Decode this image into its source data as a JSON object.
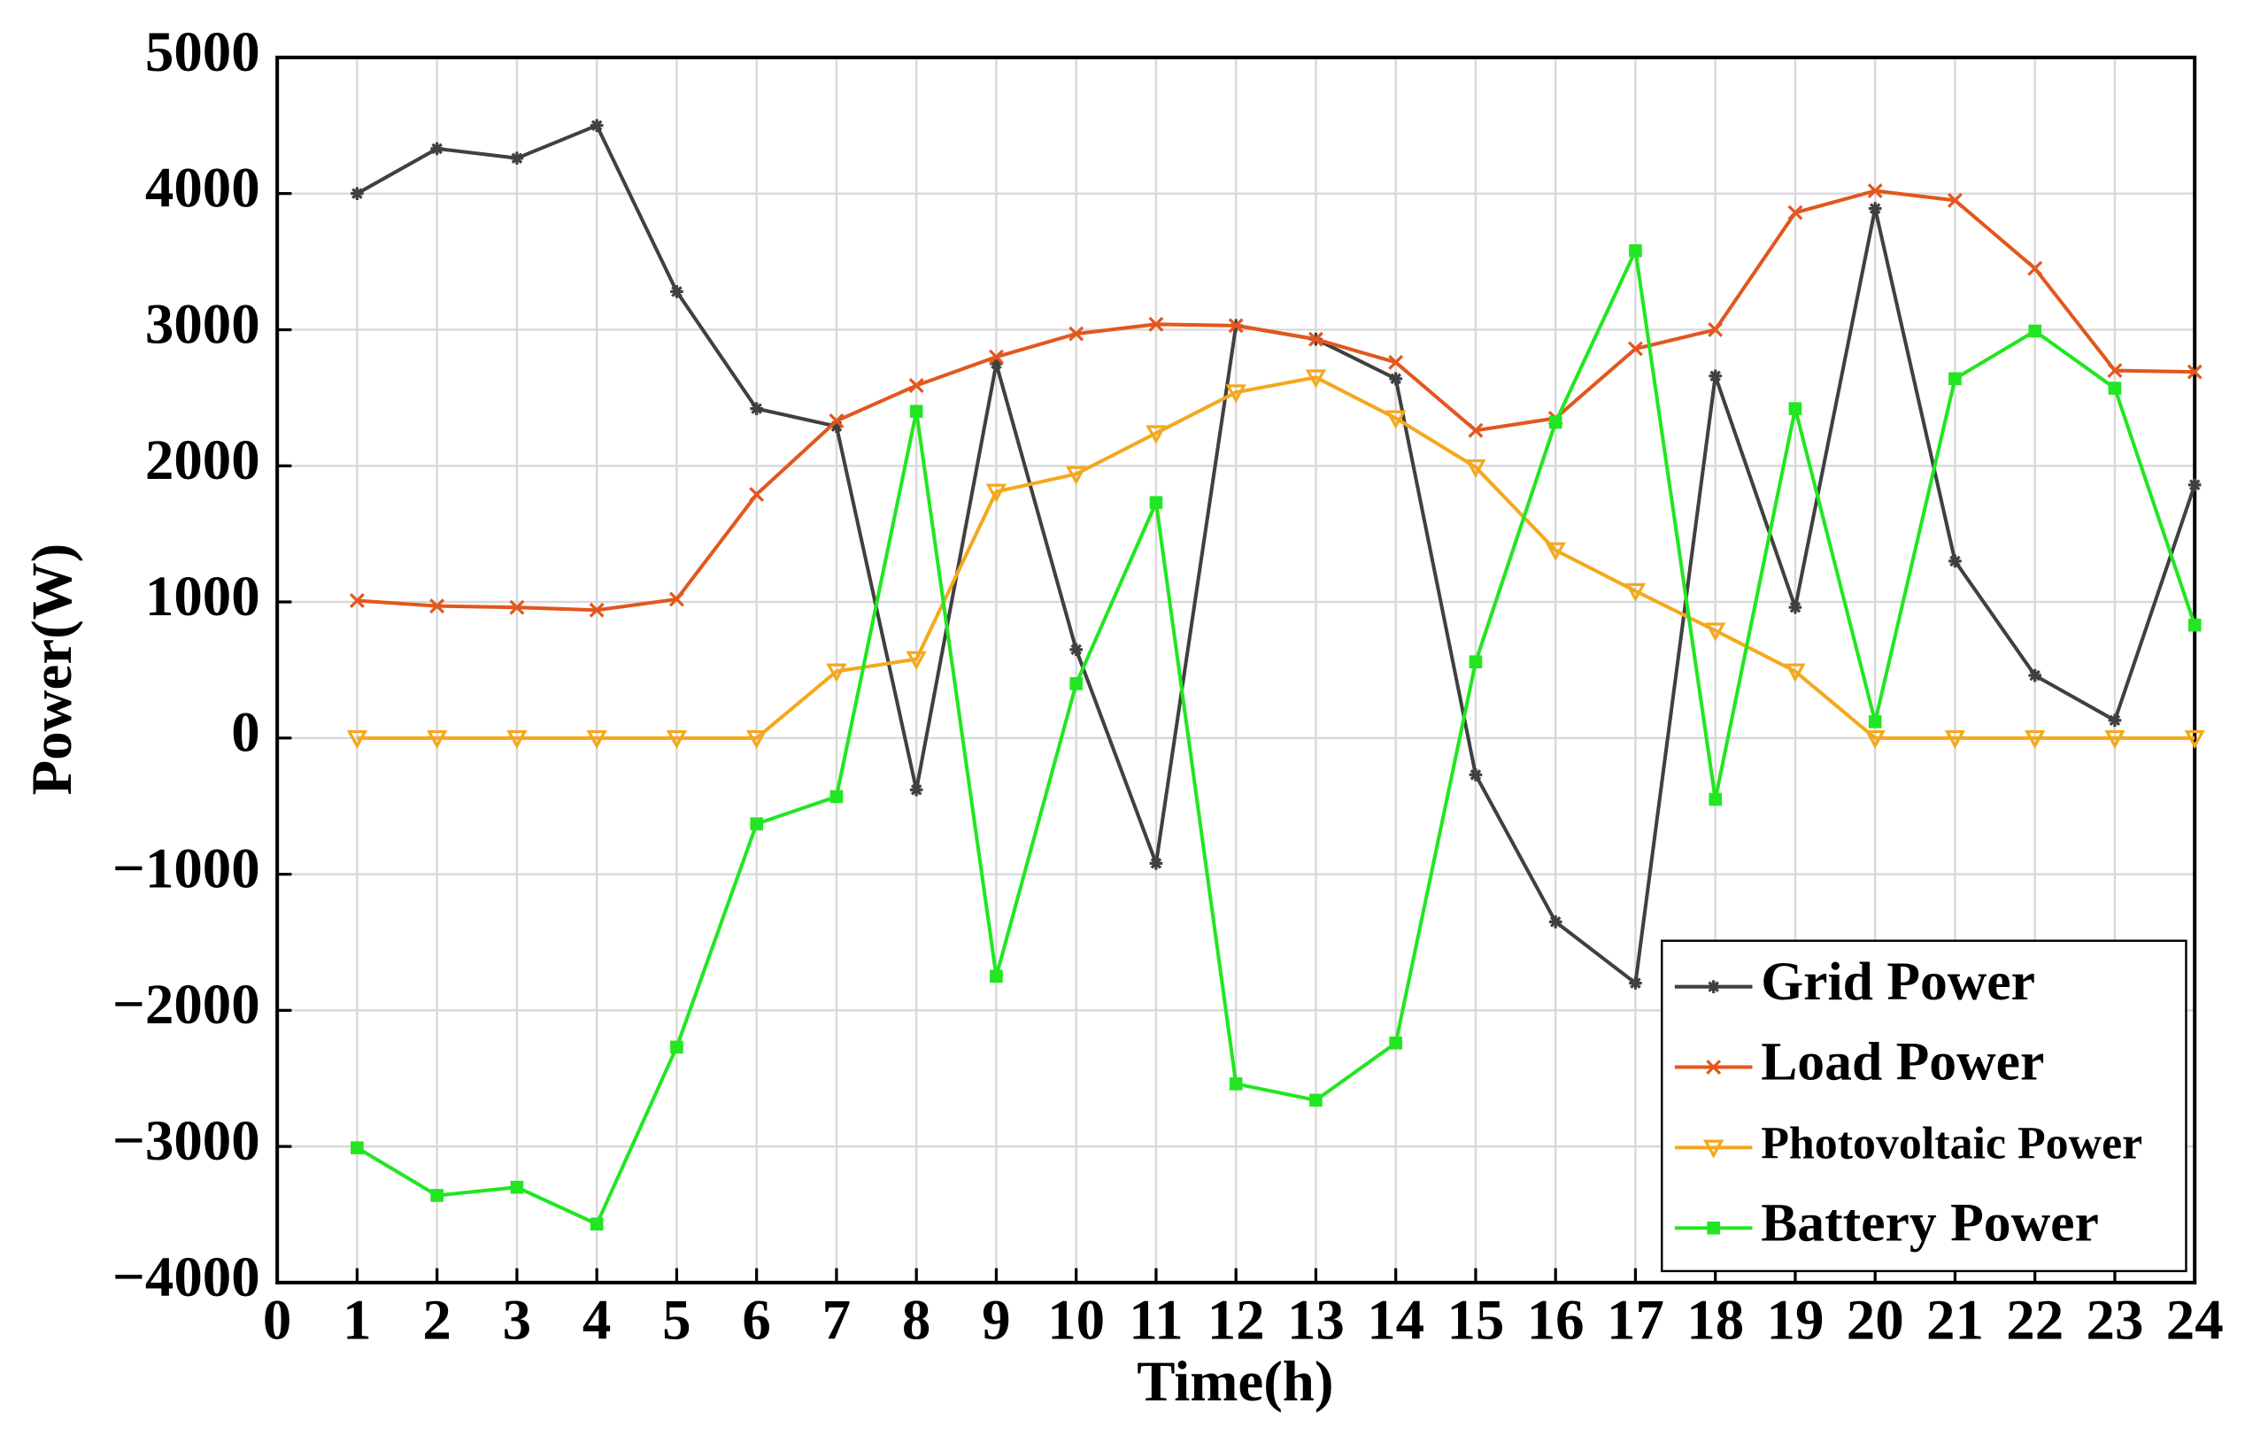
{
  "chart_data": {
    "type": "line",
    "x_label": "Time(h)",
    "y_label": "Power(W)",
    "x": [
      1,
      2,
      3,
      4,
      5,
      6,
      7,
      8,
      9,
      10,
      11,
      12,
      13,
      14,
      15,
      16,
      17,
      18,
      19,
      20,
      21,
      22,
      23,
      24
    ],
    "series": [
      {
        "name": "Grid Power",
        "color": "#404040",
        "marker": "star",
        "values": [
          4000,
          4330,
          4260,
          4500,
          3280,
          2420,
          2290,
          -380,
          2750,
          650,
          -920,
          3030,
          2930,
          2640,
          -270,
          -1350,
          -1800,
          2660,
          960,
          3890,
          1300,
          460,
          130,
          1860
        ]
      },
      {
        "name": "Load Power",
        "color": "#e2571e",
        "marker": "x",
        "values": [
          1010,
          970,
          960,
          940,
          1020,
          1790,
          2330,
          2590,
          2800,
          2970,
          3040,
          3030,
          2930,
          2760,
          2260,
          2350,
          2860,
          3000,
          3860,
          4020,
          3950,
          3450,
          2700,
          2690
        ]
      },
      {
        "name": "Photovoltaic Power",
        "color": "#f4a81d",
        "marker": "triangle-down",
        "values": [
          0,
          0,
          0,
          0,
          0,
          0,
          490,
          580,
          1810,
          1940,
          2240,
          2540,
          2650,
          2350,
          1990,
          1380,
          1080,
          790,
          490,
          0,
          0,
          0,
          0,
          0
        ]
      },
      {
        "name": "Battery Power",
        "color": "#22e622",
        "marker": "square",
        "values": [
          -3010,
          -3360,
          -3300,
          -3570,
          -2270,
          -630,
          -430,
          2400,
          -1750,
          400,
          1730,
          -2540,
          -2660,
          -2240,
          560,
          2320,
          3580,
          -450,
          2420,
          120,
          2640,
          2990,
          2570,
          830
        ]
      }
    ],
    "xlim": [
      0,
      24
    ],
    "xticks": [
      0,
      1,
      2,
      3,
      4,
      5,
      6,
      7,
      8,
      9,
      10,
      11,
      12,
      13,
      14,
      15,
      16,
      17,
      18,
      19,
      20,
      21,
      22,
      23,
      24
    ],
    "ylim": [
      -4000,
      5000
    ],
    "yticks": [
      {
        "value": -4000,
        "label": "−4000"
      },
      {
        "value": -3000,
        "label": "−3000"
      },
      {
        "value": -2000,
        "label": "−2000"
      },
      {
        "value": -1000,
        "label": "−1000"
      },
      0,
      1000,
      2000,
      3000,
      4000,
      5000
    ],
    "grid": true,
    "legend": "lower right"
  }
}
